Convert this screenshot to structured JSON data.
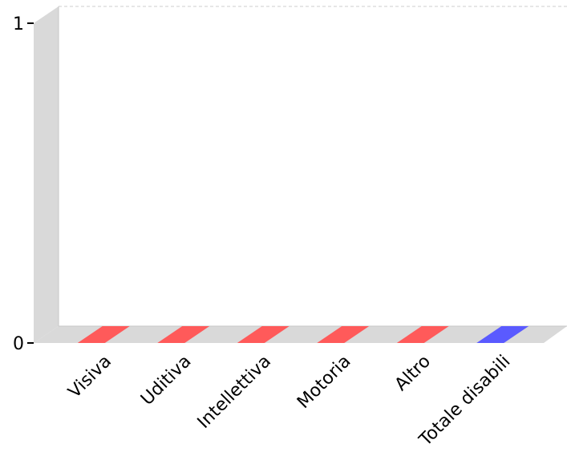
{
  "chart_data": {
    "type": "bar",
    "style": "3d",
    "categories": [
      "Visiva",
      "Uditiva",
      "Intellettiva",
      "Motoria",
      "Altro",
      "Totale disabili"
    ],
    "values": [
      0,
      0,
      0,
      0,
      0,
      0
    ],
    "bar_colors": [
      "#ff5a5a",
      "#ff5a5a",
      "#ff5a5a",
      "#ff5a5a",
      "#ff5a5a",
      "#5a5aff"
    ],
    "ylim": [
      0,
      1
    ],
    "yticks": [
      0,
      1
    ],
    "title": "",
    "xlabel": "",
    "ylabel": "",
    "grid": true,
    "legend": "none"
  },
  "colors": {
    "wall": "#d9d9d9",
    "wall_edge": "#c6c6c6",
    "grid": "#cccccc"
  }
}
